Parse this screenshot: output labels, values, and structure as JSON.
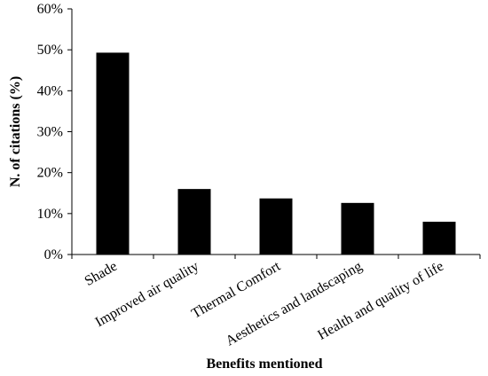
{
  "chart_data": {
    "type": "bar",
    "categories": [
      "Shade",
      "Improved air quality",
      "Thermal Comfort",
      "Aesthetics and landscaping",
      "Health and quality of life"
    ],
    "values": [
      49.3,
      16.0,
      13.7,
      12.6,
      8.0
    ],
    "xlabel": "Benefits mentioned",
    "ylabel": "N. of citations (%)",
    "ylim": [
      0,
      60
    ],
    "yticks": [
      0,
      10,
      20,
      30,
      40,
      50,
      60
    ],
    "ytick_labels": [
      "0%",
      "10%",
      "20%",
      "30%",
      "40%",
      "50%",
      "60%"
    ],
    "bar_color": "#000000",
    "grid": false,
    "legend": "none"
  }
}
